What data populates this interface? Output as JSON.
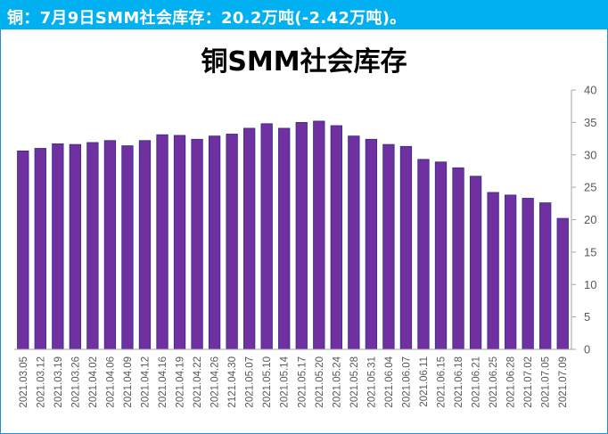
{
  "header": {
    "text": "铜：7月9日SMM社会库存：20.2万吨(-2.42万吨)。"
  },
  "colors": {
    "header_bg": "#00b0f0",
    "bar_fill": "#7030a0",
    "bar_stroke": "#2e2e8f",
    "axis": "#a6a6a6"
  },
  "chart_data": {
    "type": "bar",
    "title": "铜SMM社会库存",
    "xlabel": "",
    "ylabel": "",
    "ylim": [
      0,
      40
    ],
    "yticks": [
      0,
      5,
      10,
      15,
      20,
      25,
      30,
      35,
      40
    ],
    "y_axis_side": "right",
    "grid": false,
    "legend": "none",
    "categories": [
      "2021.03.05",
      "2021.03.12",
      "2021.03.19",
      "2021.03.26",
      "2021.04.02",
      "2021.04.06",
      "2021.04.09",
      "2021.04.12",
      "2021.04.16",
      "2021.04.19",
      "2021.04.22",
      "2021.04.26",
      "2121.04.30",
      "2021.05.07",
      "2021.05.10",
      "2021.05.14",
      "2021.05.17",
      "2021.05.20",
      "2021.05.24",
      "2021.05.28",
      "2021.05.31",
      "2021.06.04",
      "2021.06.07",
      "2021.06.11",
      "2021.06.15",
      "2021.06.18",
      "2021.06.21",
      "2021.06.25",
      "2021.06.28",
      "2021.07.02",
      "2021.07.05",
      "2021.07.09"
    ],
    "values": [
      30.6,
      31.0,
      31.7,
      31.6,
      31.9,
      32.2,
      31.4,
      32.2,
      33.1,
      33.0,
      32.4,
      32.9,
      33.2,
      34.1,
      34.8,
      34.1,
      35.0,
      35.2,
      34.5,
      32.9,
      32.4,
      31.6,
      31.3,
      29.3,
      28.9,
      28.0,
      26.7,
      24.2,
      23.8,
      23.3,
      22.6,
      20.2
    ]
  }
}
